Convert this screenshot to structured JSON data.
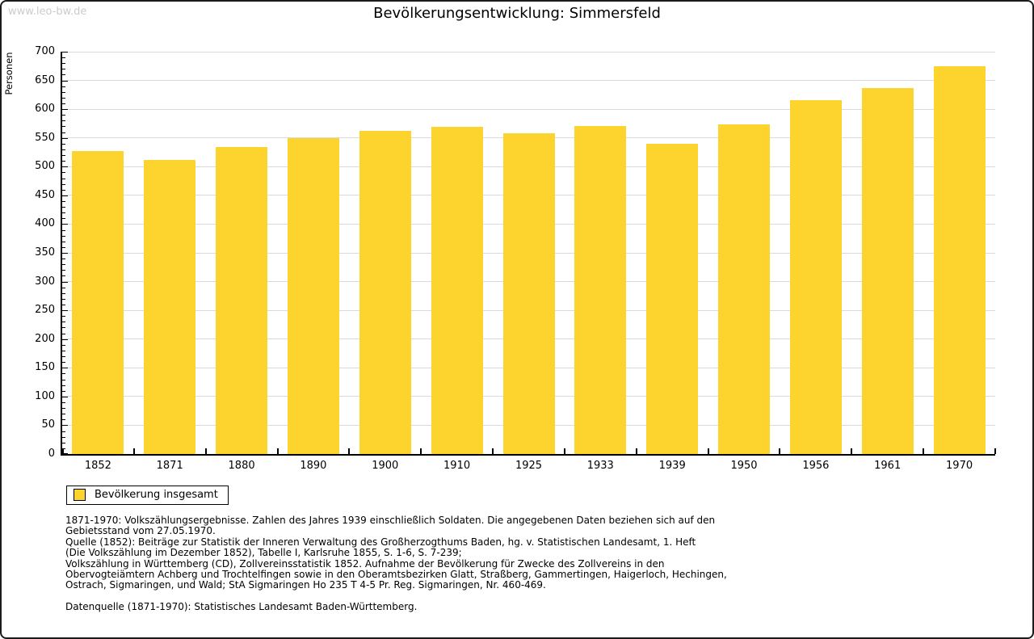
{
  "watermark": "www.leo-bw.de",
  "title": "Bevölkerungsentwicklung: Simmersfeld",
  "chart_data": {
    "type": "bar",
    "title": "Bevölkerungsentwicklung: Simmersfeld",
    "categories": [
      "1852",
      "1871",
      "1880",
      "1890",
      "1900",
      "1910",
      "1925",
      "1933",
      "1939",
      "1950",
      "1956",
      "1961",
      "1970"
    ],
    "values": [
      527,
      512,
      534,
      550,
      562,
      569,
      558,
      571,
      540,
      573,
      615,
      637,
      675
    ],
    "xlabel": "",
    "ylabel": "Personen",
    "ylim": [
      0,
      700
    ],
    "ytick_major": 50,
    "ytick_minor": 10,
    "grid": true,
    "legend_position": "bottom-left",
    "bar_color": "#fdd42e",
    "grid_color": "#dadada",
    "series_name": "Bevölkerung insgesamt"
  },
  "legend": {
    "label": "Bevölkerung insgesamt"
  },
  "footnote": {
    "lines": [
      "1871-1970: Volkszählungsergebnisse. Zahlen des Jahres 1939 einschließlich Soldaten. Die angegebenen Daten beziehen sich auf den",
      "Gebietsstand vom 27.05.1970.",
      "Quelle (1852): Beiträge zur Statistik der Inneren Verwaltung des Großherzogthums Baden, hg. v. Statistischen Landesamt, 1. Heft",
      "(Die Volkszählung im Dezember 1852), Tabelle I, Karlsruhe 1855, S. 1-6, S. 7-239;",
      "Volkszählung in Württemberg (CD), Zollvereinsstatistik 1852. Aufnahme der Bevölkerung für Zwecke des Zollvereins in den",
      "Obervogteiämtern Achberg und Trochtelfingen sowie in den Oberamtsbezirken Glatt, Straßberg, Gammertingen, Haigerloch, Hechingen,",
      "Ostrach, Sigmaringen, und Wald; StA Sigmaringen Ho 235 T 4-5 Pr. Reg. Sigmaringen, Nr. 460-469."
    ],
    "source": "Datenquelle (1871-1970): Statistisches Landesamt Baden-Württemberg."
  }
}
